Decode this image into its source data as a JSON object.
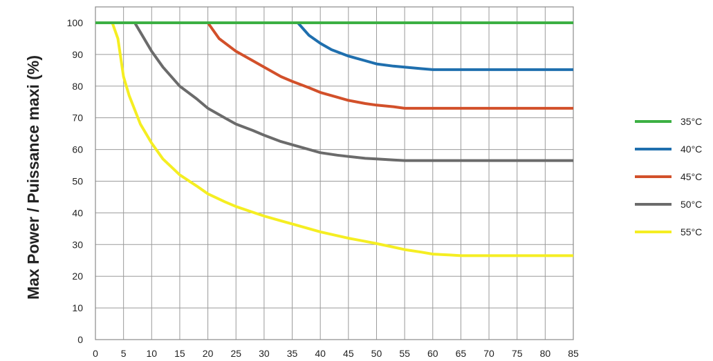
{
  "chart_data": {
    "type": "line",
    "title": "",
    "xlabel": "",
    "ylabel": "Max Power / Puissance maxi (%)",
    "xlim": [
      0,
      85
    ],
    "ylim": [
      0,
      105
    ],
    "x_ticks": [
      0,
      5,
      10,
      15,
      20,
      25,
      30,
      35,
      40,
      45,
      50,
      55,
      60,
      65,
      70,
      75,
      80,
      85
    ],
    "y_ticks": [
      0,
      10,
      20,
      30,
      40,
      50,
      60,
      70,
      80,
      90,
      100
    ],
    "grid": true,
    "legend_position": "right",
    "series": [
      {
        "name": "35°C",
        "color": "#3cb043",
        "x": [
          0,
          85
        ],
        "y": [
          100,
          100
        ]
      },
      {
        "name": "40°C",
        "color": "#1f6fae",
        "x": [
          0,
          36,
          38,
          40,
          42,
          45,
          48,
          50,
          53,
          55,
          58,
          60,
          85
        ],
        "y": [
          100,
          100,
          96,
          93.5,
          91.5,
          89.5,
          88,
          87,
          86.3,
          86,
          85.5,
          85.2,
          85.2
        ]
      },
      {
        "name": "45°C",
        "color": "#d2502a",
        "x": [
          0,
          20,
          22,
          25,
          28,
          30,
          33,
          35,
          38,
          40,
          43,
          45,
          48,
          50,
          53,
          55,
          85
        ],
        "y": [
          100,
          100,
          95,
          91,
          88,
          86,
          83,
          81.5,
          79.5,
          78,
          76.5,
          75.5,
          74.5,
          74,
          73.5,
          73,
          73
        ]
      },
      {
        "name": "50°C",
        "color": "#6b6b6b",
        "x": [
          0,
          7,
          8,
          10,
          12,
          15,
          18,
          20,
          23,
          25,
          28,
          30,
          33,
          35,
          38,
          40,
          43,
          45,
          48,
          50,
          53,
          55,
          85
        ],
        "y": [
          100,
          100,
          97,
          91,
          86,
          80,
          76,
          73,
          70,
          68,
          66,
          64.5,
          62.5,
          61.5,
          60,
          59,
          58.2,
          57.8,
          57.2,
          57,
          56.7,
          56.5,
          56.5
        ]
      },
      {
        "name": "55°C",
        "color": "#f5ee22",
        "x": [
          0,
          3,
          4,
          5,
          6,
          8,
          10,
          12,
          15,
          18,
          20,
          23,
          25,
          28,
          30,
          33,
          35,
          38,
          40,
          43,
          45,
          48,
          50,
          53,
          55,
          58,
          60,
          63,
          65,
          85
        ],
        "y": [
          100,
          100,
          95,
          83,
          77,
          68,
          62,
          57,
          52,
          48.5,
          46,
          43.5,
          42,
          40.2,
          39,
          37.5,
          36.5,
          35,
          34,
          32.8,
          32,
          31,
          30.3,
          29.2,
          28.4,
          27.6,
          27,
          26.7,
          26.5,
          26.5
        ]
      }
    ]
  }
}
